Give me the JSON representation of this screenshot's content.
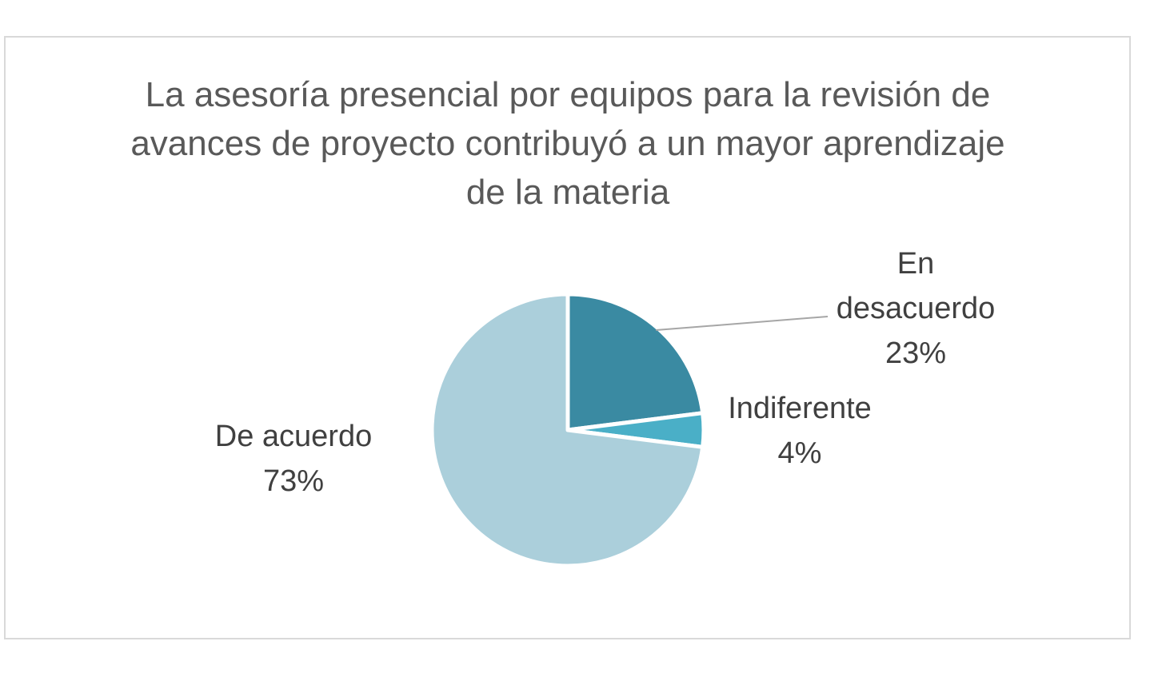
{
  "chart_data": {
    "type": "pie",
    "title": "La asesoría presencial por equipos para la revisión de avances de proyecto contribuyó a un mayor aprendizaje de la materia",
    "slices": [
      {
        "label_lines": [
          "En",
          "desacuerdo"
        ],
        "value": 23,
        "percent_label": "23%",
        "color": "#3a8aa2"
      },
      {
        "label_lines": [
          "Indiferente"
        ],
        "value": 4,
        "percent_label": "4%",
        "color": "#4aafc7"
      },
      {
        "label_lines": [
          "De acuerdo"
        ],
        "value": 73,
        "percent_label": "73%",
        "color": "#abcfdb"
      }
    ],
    "start_angle_deg": 0,
    "direction": "clockwise",
    "legend": "none",
    "data_labels": "category name and percentage",
    "slice_border_color": "#ffffff"
  }
}
